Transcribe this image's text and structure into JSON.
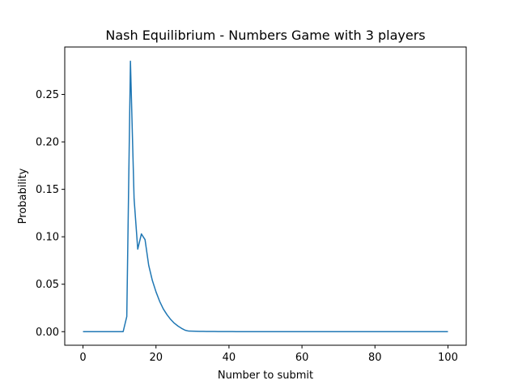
{
  "chart_data": {
    "type": "line",
    "title": "Nash Equilibrium - Numbers Game with 3 players",
    "xlabel": "Number to submit",
    "ylabel": "Probability",
    "xlim": [
      -5,
      105
    ],
    "ylim": [
      -0.0143,
      0.3
    ],
    "xticks": [
      0,
      20,
      40,
      60,
      80,
      100
    ],
    "xtick_labels": [
      "0",
      "20",
      "40",
      "60",
      "80",
      "100"
    ],
    "yticks": [
      0.0,
      0.05,
      0.1,
      0.15,
      0.2,
      0.25
    ],
    "ytick_labels": [
      "0.00",
      "0.05",
      "0.10",
      "0.15",
      "0.20",
      "0.25"
    ],
    "grid": false,
    "series": [
      {
        "color": "#1f77b4",
        "x": [
          0,
          1,
          2,
          3,
          4,
          5,
          6,
          7,
          8,
          9,
          10,
          11,
          12,
          13,
          14,
          15,
          16,
          17,
          18,
          19,
          20,
          21,
          22,
          23,
          24,
          25,
          26,
          27,
          28,
          29,
          30,
          31,
          32,
          33,
          34,
          35,
          36,
          37,
          38,
          39,
          40,
          41,
          42,
          43,
          44,
          45,
          46,
          47,
          48,
          49,
          50,
          51,
          52,
          53,
          54,
          55,
          56,
          57,
          58,
          59,
          60,
          61,
          62,
          63,
          64,
          65,
          66,
          67,
          68,
          69,
          70,
          71,
          72,
          73,
          74,
          75,
          76,
          77,
          78,
          79,
          80,
          81,
          82,
          83,
          84,
          85,
          86,
          87,
          88,
          89,
          90,
          91,
          92,
          93,
          94,
          95,
          96,
          97,
          98,
          99,
          100
        ],
        "y": [
          0,
          0,
          0,
          0,
          0,
          0,
          0,
          0,
          0,
          0,
          0,
          0,
          0.016,
          0.285,
          0.14,
          0.087,
          0.103,
          0.097,
          0.07,
          0.054,
          0.042,
          0.032,
          0.024,
          0.018,
          0.013,
          0.009,
          0.006,
          0.0035,
          0.0015,
          0.0006,
          0.0005,
          0.0004,
          0.0003,
          0.0003,
          0.0002,
          0.0002,
          0.0002,
          0.0001,
          0.0001,
          0.0001,
          0.0001,
          0.0001,
          0,
          0,
          0,
          0,
          0,
          0,
          0,
          0,
          0,
          0,
          0,
          0,
          0,
          0,
          0,
          0,
          0,
          0,
          0,
          0,
          0,
          0,
          0,
          0,
          0,
          0,
          0,
          0,
          0,
          0,
          0,
          0,
          0,
          0,
          0,
          0,
          0,
          0,
          0,
          0,
          0,
          0,
          0,
          0,
          0,
          0,
          0,
          0,
          0,
          0,
          0,
          0,
          0,
          0,
          0,
          0,
          0,
          0,
          0
        ]
      }
    ]
  }
}
